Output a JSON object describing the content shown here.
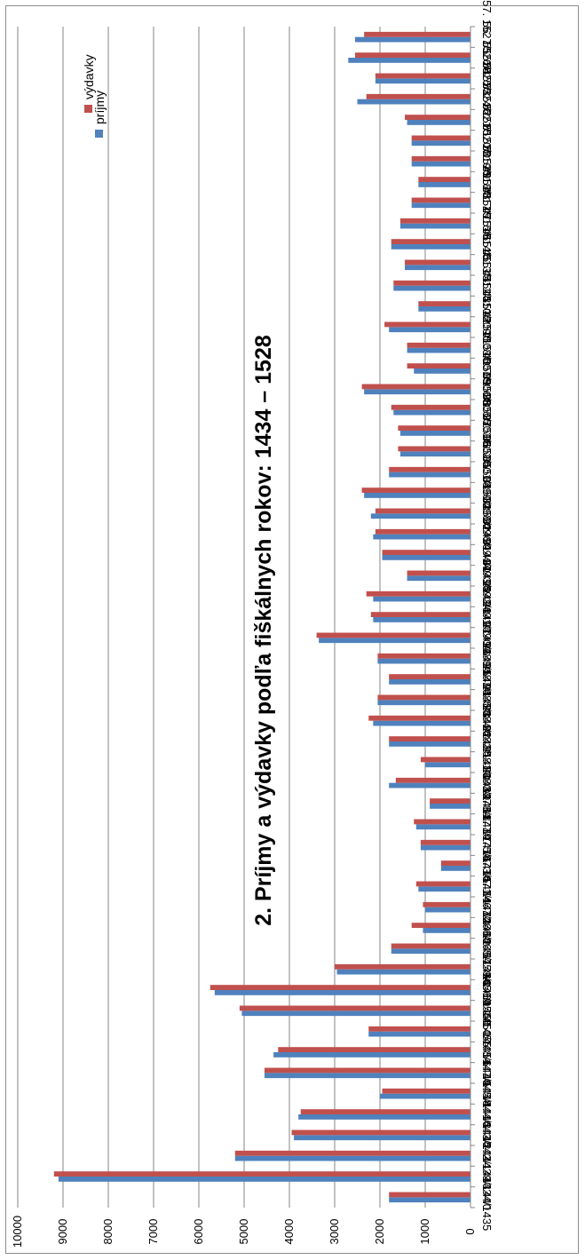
{
  "chart_data": {
    "type": "bar",
    "orientation": "horizontal, image rotated 90 degrees",
    "title": "2. Príjmy a výdavky podľa fiškálnych rokov: 1434 – 1528",
    "xlabel": "",
    "ylabel": "",
    "ylim": [
      0,
      10000
    ],
    "yticks": [
      "0",
      "1000",
      "2000",
      "3000",
      "4000",
      "5000",
      "6000",
      "7000",
      "8000",
      "9000",
      "10000"
    ],
    "grid": true,
    "legend_position": "top-right",
    "colors": {
      "prijmy": "#4f81bd",
      "vydavky": "#c0504d",
      "grid": "#868686",
      "axis": "#868686"
    },
    "categories": [
      "1. 1434/1435",
      "2. 1439/1440",
      "3. 1442/1443",
      "4. 1443/1444",
      "5. 1444/1445",
      "6. 1445/1446",
      "7. 1447/1448",
      "8. 1448/1449",
      "9. 1450/1451",
      "10. 1454/1455",
      "11. 1456/1456",
      "12. 1459/1460",
      "13. 1465/1466",
      "14. 1466/1467",
      "15. 1467/1468",
      "16. 1471/1472",
      "17. 1473/1474",
      "18. 1475/1476",
      "19. 1477/1478",
      "20. 1478/1479",
      "21. 1480/1481",
      "22. 1481/1482",
      "23. 1482/1483",
      "24. 1484/1485",
      "25. 1485/1486",
      "26. 1487/1488",
      "27. 1489/1490",
      "28. 1490/1491",
      "29. 1491/1492",
      "30. 1492/1493",
      "31. 1493/1494",
      "32. 1494/1495",
      "33. 1496/1497",
      "34. 1498/1499",
      "35. 1499/1500",
      "36. 1501/1502",
      "37. 1502/1503",
      "38. 1503/1504",
      "39. 1505/1506",
      "40. 1506/1507",
      "41. 1507/1508",
      "42. 1508/1509",
      "43. 1509/1510",
      "44. 1510/1511",
      "45. 1511/1512",
      "46. 1513/1514",
      "47. 1514/1515",
      "48. 1515/1516",
      "49. 1517/1518",
      "50. 1518/1519",
      "51. 1519/1520",
      "52. 1520/1521",
      "53. 1521/1522",
      "54. 1524/1525",
      "55. 1525/1526",
      "56. 1526/1527",
      "57. 1527/1528"
    ],
    "series": [
      {
        "name": "príjmy",
        "values": [
          1800,
          9100,
          5200,
          3900,
          3800,
          2000,
          4550,
          4350,
          2250,
          5050,
          5650,
          2950,
          1750,
          1050,
          1000,
          1150,
          650,
          1100,
          1200,
          900,
          1800,
          1000,
          1800,
          2150,
          2050,
          1800,
          2050,
          3350,
          2150,
          2150,
          1400,
          1950,
          2150,
          2200,
          2350,
          1800,
          1550,
          1550,
          1700,
          2350,
          1250,
          1400,
          1800,
          1150,
          1700,
          1450,
          1750,
          1550,
          1300,
          1150,
          1300,
          1300,
          1400,
          2500,
          2100,
          2700,
          2550
        ]
      },
      {
        "name": "výdavky",
        "values": [
          1800,
          9200,
          5200,
          3950,
          3750,
          1950,
          4550,
          4250,
          2250,
          5100,
          5750,
          3000,
          1750,
          1300,
          1050,
          1200,
          650,
          1100,
          1250,
          900,
          1650,
          1100,
          1800,
          2250,
          2050,
          1800,
          2050,
          3400,
          2200,
          2300,
          1400,
          1950,
          2100,
          2100,
          2400,
          1800,
          1600,
          1600,
          1750,
          2400,
          1400,
          1400,
          1900,
          1150,
          1700,
          1450,
          1750,
          1550,
          1300,
          1150,
          1300,
          1300,
          1450,
          2300,
          2100,
          2550,
          2350
        ]
      }
    ]
  }
}
